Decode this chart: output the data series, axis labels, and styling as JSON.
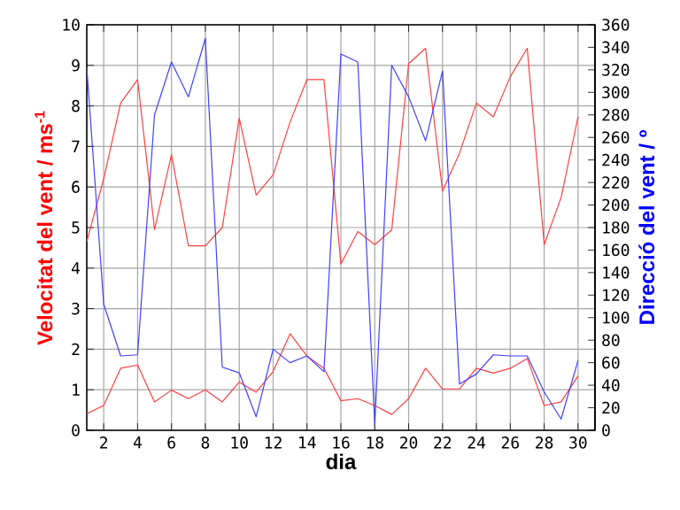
{
  "chart_data": {
    "type": "line",
    "xlabel": "dia",
    "ylabel": "Velocitat del vent / ms$^{-1}$",
    "y2label": "Direcció del vent / º",
    "x": [
      1,
      2,
      3,
      4,
      5,
      6,
      7,
      8,
      9,
      10,
      11,
      12,
      13,
      14,
      15,
      16,
      17,
      18,
      19,
      20,
      21,
      22,
      23,
      24,
      25,
      26,
      27,
      28,
      29,
      30
    ],
    "xlim": [
      1,
      31
    ],
    "xticks": [
      2,
      4,
      6,
      8,
      10,
      12,
      14,
      16,
      18,
      20,
      22,
      24,
      26,
      28,
      30
    ],
    "ylim": [
      0,
      10
    ],
    "yticks": [
      0,
      1,
      2,
      3,
      4,
      5,
      6,
      7,
      8,
      9,
      10
    ],
    "y2lim": [
      0,
      360
    ],
    "y2ticks": [
      0,
      20,
      40,
      60,
      80,
      100,
      120,
      140,
      160,
      180,
      200,
      220,
      240,
      260,
      280,
      300,
      320,
      340,
      360
    ],
    "grid": true,
    "series": [
      {
        "color": "#ff4040",
        "values": [
          4.65,
          6.2,
          8.07,
          8.65,
          4.95,
          6.8,
          4.55,
          4.55,
          5.0,
          7.7,
          5.8,
          6.3,
          7.6,
          8.65,
          8.65,
          4.1,
          4.9,
          4.58,
          4.94,
          9.04,
          9.42,
          5.9,
          6.83,
          8.07,
          7.73,
          8.72,
          9.42,
          4.58,
          5.74,
          7.73
        ]
      },
      {
        "color": "#ff4040",
        "values": [
          0.41,
          0.61,
          1.53,
          1.61,
          0.7,
          0.99,
          0.78,
          1.0,
          0.7,
          1.19,
          0.94,
          1.45,
          2.38,
          1.83,
          1.53,
          0.73,
          0.78,
          0.61,
          0.39,
          0.78,
          1.53,
          1.02,
          1.02,
          1.53,
          1.41,
          1.53,
          1.77,
          0.61,
          0.7,
          1.34
        ]
      },
      {
        "color": "#4040ff",
        "axis": "y2",
        "values": [
          322,
          112,
          66,
          67,
          280,
          327,
          296,
          348,
          56,
          51,
          12,
          72,
          60,
          66,
          52,
          334,
          327,
          5,
          324,
          296,
          257,
          319,
          41,
          50,
          67,
          66,
          66,
          34,
          10,
          62
        ]
      }
    ]
  }
}
